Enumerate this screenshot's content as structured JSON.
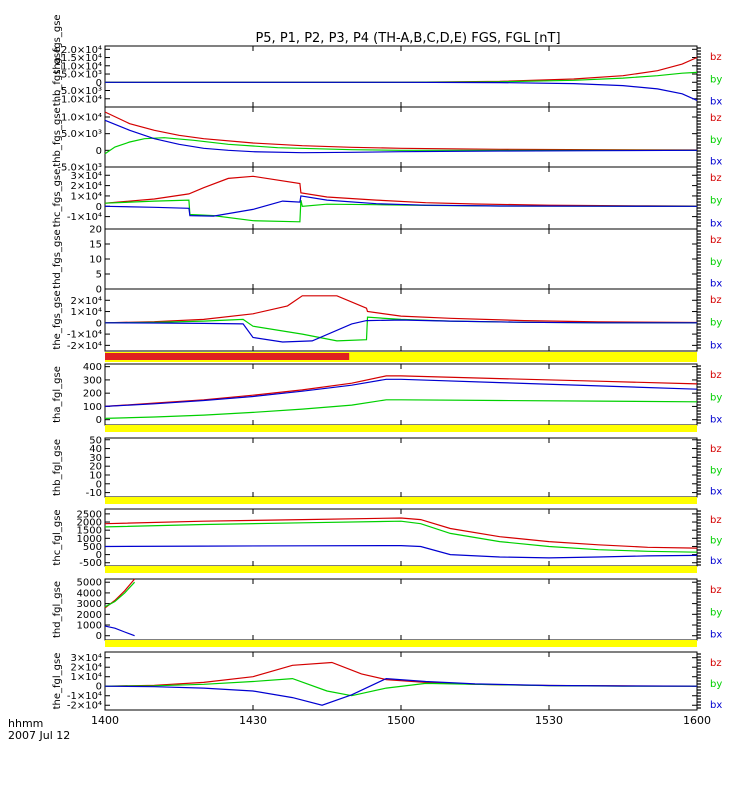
{
  "title": "P5, P1, P2, P3, P4 (TH-A,B,C,D,E) FGS, FGL [nT]",
  "xaxis": {
    "label_line1": "hhmm",
    "label_line2": "2007 Jul 12",
    "ticks": [
      "1400",
      "1430",
      "1500",
      "1530",
      "1600"
    ],
    "tick_minutes": [
      0,
      30,
      60,
      90,
      120
    ],
    "range_minutes": [
      0,
      120
    ]
  },
  "legend_labels": [
    "bz",
    "by",
    "bx"
  ],
  "colors": {
    "bz": "#d40000",
    "by": "#00d000",
    "bx": "#0000d0",
    "bar_yellow": "#ffff00",
    "bar_red": "#e02020",
    "axis": "#000000"
  },
  "status_bars": [
    {
      "name": "bar-after-the",
      "red_until_minute": 49.5
    },
    {
      "name": "bar-after-thc-fgl",
      "red_until_minute": 0
    },
    {
      "name": "bar-after-thb-fgl",
      "red_until_minute": 0
    },
    {
      "name": "bar-after-tha-fgl-top",
      "red_until_minute": 0
    },
    {
      "name": "bar-after-thd-fgl",
      "red_until_minute": 0
    }
  ],
  "chart_data": [
    {
      "type": "line",
      "ylabel": "thb_fgs_gse",
      "ylabel_extra": "tha_fgs_gse",
      "ylim": [
        -15000,
        22000
      ],
      "yticks": [
        -10000,
        -5000,
        0,
        5000,
        10000,
        15000,
        20000
      ],
      "ytick_labels": [
        "-1.0×10⁴",
        "-5.0×10³",
        "0",
        "5.0×10³",
        "1.0×10⁴",
        "1.5×10⁴",
        "2.0×10⁴"
      ],
      "series": [
        {
          "name": "bz",
          "x": [
            0,
            30,
            60,
            80,
            95,
            105,
            112,
            117,
            120
          ],
          "y": [
            0,
            0,
            0,
            500,
            2000,
            4000,
            7000,
            11000,
            15000
          ]
        },
        {
          "name": "by",
          "x": [
            0,
            30,
            60,
            80,
            95,
            105,
            112,
            117,
            120
          ],
          "y": [
            0,
            0,
            0,
            300,
            1200,
            2500,
            4000,
            5500,
            6000
          ]
        },
        {
          "name": "bx",
          "x": [
            0,
            30,
            60,
            80,
            95,
            105,
            112,
            117,
            120
          ],
          "y": [
            0,
            0,
            0,
            -200,
            -800,
            -2000,
            -4000,
            -7000,
            -11000
          ]
        }
      ]
    },
    {
      "type": "line",
      "ylabel": "thb_fgs_gse",
      "ylim": [
        -5000,
        13000
      ],
      "yticks": [
        -5000,
        0,
        5000,
        10000
      ],
      "ytick_labels": [
        "-5.0×10³",
        "0",
        "5.0×10³",
        "1.0×10⁴"
      ],
      "series": [
        {
          "name": "bz",
          "x": [
            0,
            5,
            10,
            15,
            20,
            30,
            40,
            50,
            60,
            80,
            100,
            120
          ],
          "y": [
            11500,
            8000,
            6000,
            4500,
            3500,
            2200,
            1400,
            900,
            600,
            300,
            200,
            100
          ]
        },
        {
          "name": "by",
          "x": [
            0,
            2,
            5,
            8,
            12,
            18,
            25,
            35,
            50,
            60,
            80,
            100,
            120
          ],
          "y": [
            -1000,
            1000,
            2500,
            3500,
            3800,
            3000,
            1800,
            800,
            200,
            0,
            0,
            0,
            0
          ]
        },
        {
          "name": "bx",
          "x": [
            0,
            5,
            10,
            15,
            20,
            25,
            30,
            40,
            50,
            60,
            80,
            100,
            120
          ],
          "y": [
            9000,
            6000,
            3500,
            1800,
            600,
            0,
            -400,
            -700,
            -600,
            -400,
            -200,
            -100,
            0
          ]
        }
      ]
    },
    {
      "type": "line",
      "ylabel": "thc_fgs_gse",
      "ylim": [
        -22000,
        38000
      ],
      "yticks": [
        -10000,
        0,
        10000,
        20000,
        30000
      ],
      "ytick_labels": [
        "-1×10⁴",
        "0",
        "1×10⁴",
        "2×10⁴",
        "3×10⁴"
      ],
      "series": [
        {
          "name": "bz",
          "x": [
            0,
            10,
            17,
            20,
            25,
            30,
            39.5,
            39.7,
            45,
            55,
            65,
            75,
            90,
            110,
            120
          ],
          "y": [
            3000,
            7000,
            12000,
            18000,
            27000,
            29000,
            22000,
            13000,
            9000,
            6000,
            3500,
            2200,
            1000,
            400,
            200
          ]
        },
        {
          "name": "by",
          "x": [
            0,
            10,
            17,
            17.2,
            22,
            30,
            39.5,
            39.7,
            40,
            45,
            55,
            65,
            80,
            100,
            120
          ],
          "y": [
            3000,
            5000,
            6000,
            -8000,
            -9000,
            -14000,
            -15000,
            6000,
            0,
            2000,
            1500,
            800,
            300,
            100,
            0
          ]
        },
        {
          "name": "bx",
          "x": [
            0,
            10,
            17,
            17.2,
            22,
            30,
            36,
            39.5,
            39.7,
            45,
            55,
            65,
            80,
            100,
            120
          ],
          "y": [
            0,
            -1000,
            -2000,
            -9000,
            -9500,
            -3000,
            5000,
            4000,
            10000,
            6000,
            2500,
            1000,
            300,
            100,
            0
          ]
        }
      ]
    },
    {
      "type": "line",
      "ylabel": "thd_fgs_gse",
      "ylim": [
        0,
        20
      ],
      "yticks": [
        0,
        5,
        10,
        15,
        20
      ],
      "ytick_labels": [
        "0",
        "5",
        "10",
        "15",
        "20"
      ],
      "series": []
    },
    {
      "type": "line",
      "ylabel": "the_fgs_gse",
      "ylim": [
        -25000,
        30000
      ],
      "yticks": [
        -20000,
        -10000,
        0,
        10000,
        20000
      ],
      "ytick_labels": [
        "-2×10⁴",
        "-1×10⁴",
        "0",
        "1×10⁴",
        "2×10⁴"
      ],
      "series": [
        {
          "name": "bz",
          "x": [
            0,
            10,
            20,
            30,
            37,
            40,
            47,
            53,
            53.2,
            60,
            70,
            85,
            100,
            120
          ],
          "y": [
            0,
            1000,
            3000,
            8000,
            15000,
            24000,
            24000,
            13000,
            10000,
            6000,
            4000,
            2000,
            800,
            300
          ]
        },
        {
          "name": "by",
          "x": [
            0,
            10,
            20,
            28,
            30,
            40,
            47,
            53,
            53.2,
            60,
            70,
            85,
            100,
            120
          ],
          "y": [
            0,
            500,
            1500,
            3000,
            -3000,
            -10000,
            -16000,
            -15000,
            5000,
            3000,
            1500,
            500,
            0,
            0
          ]
        },
        {
          "name": "bx",
          "x": [
            0,
            10,
            20,
            28,
            30,
            36,
            42,
            50,
            53,
            60,
            70,
            85,
            100,
            120
          ],
          "y": [
            0,
            -200,
            -500,
            -1000,
            -13000,
            -17000,
            -16000,
            -1000,
            2000,
            2500,
            1500,
            500,
            0,
            0
          ]
        }
      ]
    },
    {
      "type": "line",
      "ylabel": "tha_fgl_gse",
      "ylim": [
        -40,
        420
      ],
      "yticks": [
        0,
        100,
        200,
        300,
        400
      ],
      "ytick_labels": [
        "0",
        "100",
        "200",
        "300",
        "400"
      ],
      "series": [
        {
          "name": "bz",
          "x": [
            0,
            10,
            20,
            30,
            40,
            50,
            57,
            60,
            80,
            100,
            120
          ],
          "y": [
            100,
            125,
            150,
            185,
            225,
            275,
            330,
            330,
            310,
            290,
            270
          ]
        },
        {
          "name": "by",
          "x": [
            0,
            10,
            20,
            30,
            40,
            50,
            57,
            60,
            80,
            100,
            120
          ],
          "y": [
            10,
            20,
            35,
            55,
            80,
            110,
            150,
            150,
            145,
            140,
            135
          ]
        },
        {
          "name": "bx",
          "x": [
            0,
            10,
            20,
            30,
            40,
            50,
            57,
            60,
            80,
            100,
            120
          ],
          "y": [
            100,
            120,
            145,
            175,
            215,
            260,
            305,
            305,
            280,
            255,
            230
          ]
        }
      ]
    },
    {
      "type": "line",
      "ylabel": "thb_fgl_gse",
      "ylim": [
        -15,
        52
      ],
      "yticks": [
        -10,
        0,
        10,
        20,
        30,
        40,
        50
      ],
      "ytick_labels": [
        "-10",
        "0",
        "10",
        "20",
        "30",
        "40",
        "50"
      ],
      "series": []
    },
    {
      "type": "line",
      "ylabel": "thc_fgl_gse",
      "ylim": [
        -700,
        2800
      ],
      "yticks": [
        -500,
        0,
        500,
        1000,
        1500,
        2000,
        2500
      ],
      "ytick_labels": [
        "-500",
        "0",
        "500",
        "1000",
        "1500",
        "2000",
        "2500"
      ],
      "series": [
        {
          "name": "bz",
          "x": [
            0,
            20,
            40,
            60,
            64,
            70,
            80,
            90,
            100,
            110,
            120
          ],
          "y": [
            1900,
            2050,
            2150,
            2250,
            2150,
            1600,
            1100,
            800,
            600,
            450,
            400
          ]
        },
        {
          "name": "by",
          "x": [
            0,
            20,
            40,
            60,
            64,
            70,
            80,
            90,
            100,
            110,
            120
          ],
          "y": [
            1700,
            1850,
            1950,
            2050,
            1900,
            1300,
            800,
            500,
            300,
            200,
            150
          ]
        },
        {
          "name": "bx",
          "x": [
            0,
            20,
            40,
            60,
            64,
            70,
            80,
            90,
            100,
            110,
            120
          ],
          "y": [
            500,
            520,
            540,
            550,
            500,
            0,
            -150,
            -200,
            -150,
            -80,
            -50
          ]
        }
      ]
    },
    {
      "type": "line",
      "ylabel": "thd_fgl_gse",
      "ylim": [
        -400,
        5300
      ],
      "yticks": [
        0,
        1000,
        2000,
        3000,
        4000,
        5000
      ],
      "ytick_labels": [
        "0",
        "1000",
        "2000",
        "3000",
        "4000",
        "5000"
      ],
      "series": [
        {
          "name": "bz",
          "x": [
            0,
            2,
            4,
            6
          ],
          "y": [
            2600,
            3300,
            4200,
            5300
          ]
        },
        {
          "name": "by",
          "x": [
            0,
            2,
            4,
            6
          ],
          "y": [
            2700,
            3200,
            4000,
            5000
          ]
        },
        {
          "name": "bx",
          "x": [
            0,
            2,
            4,
            6
          ],
          "y": [
            900,
            700,
            350,
            0
          ]
        }
      ]
    },
    {
      "type": "line",
      "ylabel": "the_fgl_gse",
      "ylim": [
        -25000,
        36000
      ],
      "yticks": [
        -20000,
        -10000,
        0,
        10000,
        20000,
        30000
      ],
      "ytick_labels": [
        "-2×10⁴",
        "-1×10⁴",
        "0",
        "1×10⁴",
        "2×10⁴",
        "3×10⁴"
      ],
      "series": [
        {
          "name": "bz",
          "x": [
            0,
            10,
            20,
            30,
            38,
            46,
            52,
            57,
            65,
            75,
            90,
            105,
            120
          ],
          "y": [
            0,
            1000,
            4000,
            10000,
            22000,
            25000,
            13000,
            7000,
            4000,
            2000,
            800,
            300,
            100
          ]
        },
        {
          "name": "by",
          "x": [
            0,
            10,
            20,
            30,
            38,
            45,
            50,
            57,
            65,
            75,
            90,
            105,
            120
          ],
          "y": [
            0,
            500,
            2000,
            5000,
            8000,
            -5000,
            -10000,
            -2000,
            3000,
            2000,
            600,
            100,
            0
          ]
        },
        {
          "name": "bx",
          "x": [
            0,
            10,
            20,
            30,
            38,
            44,
            50,
            57,
            65,
            75,
            90,
            105,
            120
          ],
          "y": [
            0,
            -500,
            -2000,
            -5000,
            -12000,
            -20000,
            -9000,
            8000,
            5000,
            2500,
            800,
            200,
            0
          ]
        }
      ]
    }
  ]
}
